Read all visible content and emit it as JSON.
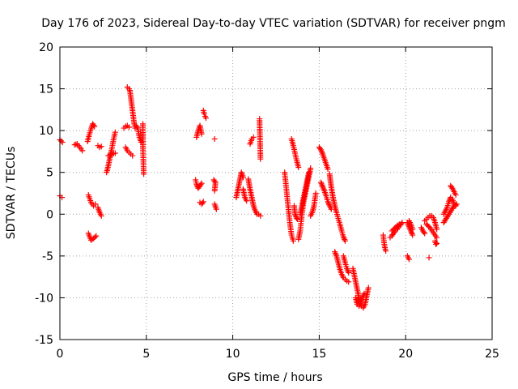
{
  "chart_data": {
    "type": "scatter",
    "title": "Day 176 of 2023, Sidereal Day-to-day VTEC variation (SDTVAR) for receiver pngm",
    "xlabel": "GPS time / hours",
    "ylabel": "SDTVAR / TECUs",
    "xlim": [
      0,
      25
    ],
    "ylim": [
      -15,
      20
    ],
    "xticks": [
      0,
      5,
      10,
      15,
      20,
      25
    ],
    "yticks": [
      -15,
      -10,
      -5,
      0,
      5,
      10,
      15,
      20
    ],
    "grid": true,
    "marker": "+",
    "series": [
      {
        "name": "SDTVAR",
        "color": "#ff0000",
        "segments": [
          {
            "x": [
              0.0,
              0.15
            ],
            "y": [
              8.9,
              8.6
            ]
          },
          {
            "x": [
              0.0,
              0.12
            ],
            "y": [
              2.2,
              2.0
            ]
          },
          {
            "x": [
              0.85,
              1.0,
              1.15,
              1.3
            ],
            "y": [
              8.3,
              8.4,
              8.0,
              7.6
            ]
          },
          {
            "x": [
              1.6,
              1.7,
              1.8,
              1.9,
              2.0
            ],
            "y": [
              8.7,
              9.5,
              10.2,
              10.8,
              10.5
            ]
          },
          {
            "x": [
              1.65,
              1.8,
              1.95,
              2.05
            ],
            "y": [
              2.3,
              1.4,
              1.0,
              1.2
            ]
          },
          {
            "x": [
              1.65,
              1.8,
              1.95,
              2.1
            ],
            "y": [
              -2.3,
              -3.1,
              -2.9,
              -2.6
            ]
          },
          {
            "x": [
              2.2,
              2.3,
              2.4
            ],
            "y": [
              8.2,
              8.0,
              8.1
            ]
          },
          {
            "x": [
              2.2,
              2.3,
              2.4
            ],
            "y": [
              0.8,
              0.2,
              -0.2
            ]
          },
          {
            "x": [
              2.7,
              2.8,
              2.9,
              3.0,
              3.1,
              3.2
            ],
            "y": [
              5.0,
              5.8,
              6.8,
              7.8,
              8.9,
              9.8
            ]
          },
          {
            "x": [
              2.8,
              3.0,
              3.2
            ],
            "y": [
              7.0,
              7.2,
              7.3
            ]
          },
          {
            "x": [
              3.7,
              3.8,
              3.9,
              4.0
            ],
            "y": [
              10.3,
              10.5,
              10.6,
              10.4
            ]
          },
          {
            "x": [
              3.9,
              4.0,
              4.05,
              4.1,
              4.15,
              4.2,
              4.25,
              4.3,
              4.35
            ],
            "y": [
              15.2,
              15.0,
              14.8,
              14.0,
              13.2,
              12.4,
              11.6,
              10.8,
              10.3
            ]
          },
          {
            "x": [
              3.8,
              3.9,
              4.0,
              4.1,
              4.2
            ],
            "y": [
              8.0,
              7.6,
              7.4,
              7.2,
              7.0
            ]
          },
          {
            "x": [
              4.4,
              4.5,
              4.6,
              4.7
            ],
            "y": [
              10.6,
              10.3,
              9.2,
              8.6
            ]
          },
          {
            "x": [
              4.8,
              4.8,
              4.85
            ],
            "y": [
              10.8,
              8.1,
              4.8
            ]
          },
          {
            "x": [
              7.9,
              8.0,
              8.1,
              8.2
            ],
            "y": [
              9.2,
              10.0,
              10.6,
              9.6
            ]
          },
          {
            "x": [
              7.85,
              7.9,
              8.0,
              8.1,
              8.2
            ],
            "y": [
              4.1,
              3.6,
              3.1,
              3.4,
              3.7
            ]
          },
          {
            "x": [
              8.1,
              8.2,
              8.3
            ],
            "y": [
              1.4,
              1.2,
              1.5
            ]
          },
          {
            "x": [
              8.3,
              8.35,
              8.4,
              8.45
            ],
            "y": [
              12.4,
              12.0,
              11.7,
              11.5
            ]
          },
          {
            "x": [
              8.9,
              9.0,
              8.95
            ],
            "y": [
              4.1,
              3.8,
              2.8
            ]
          },
          {
            "x": [
              8.95,
              9.05
            ],
            "y": [
              1.2,
              0.6
            ]
          },
          {
            "x": [
              8.95
            ],
            "y": [
              9.0
            ]
          },
          {
            "x": [
              10.2,
              10.3,
              10.4,
              10.5,
              10.6
            ],
            "y": [
              2.0,
              3.0,
              4.0,
              5.0,
              4.4
            ]
          },
          {
            "x": [
              10.6,
              10.7,
              10.8
            ],
            "y": [
              3.0,
              2.0,
              1.6
            ]
          },
          {
            "x": [
              10.9,
              11.0,
              11.1,
              11.2,
              11.3,
              11.4
            ],
            "y": [
              4.2,
              3.0,
              2.0,
              1.0,
              0.4,
              0.0
            ]
          },
          {
            "x": [
              11.0,
              11.1,
              11.2
            ],
            "y": [
              8.4,
              9.0,
              9.2
            ]
          },
          {
            "x": [
              11.5,
              11.6
            ],
            "y": [
              0.0,
              -0.2
            ]
          },
          {
            "x": [
              11.55,
              11.6
            ],
            "y": [
              11.4,
              6.6
            ]
          },
          {
            "x": [
              13.0,
              13.1,
              13.2,
              13.3,
              13.4,
              13.5
            ],
            "y": [
              5.0,
              3.0,
              1.0,
              -1.0,
              -2.5,
              -3.2
            ]
          },
          {
            "x": [
              13.4,
              13.5,
              13.6,
              13.7,
              13.8
            ],
            "y": [
              9.0,
              8.2,
              7.3,
              6.4,
              5.6
            ]
          },
          {
            "x": [
              13.55,
              13.6,
              13.7,
              13.75
            ],
            "y": [
              1.0,
              0.0,
              -0.5,
              -0.6
            ]
          },
          {
            "x": [
              13.8,
              13.9,
              14.0,
              14.1,
              14.2,
              14.3,
              14.4,
              14.5
            ],
            "y": [
              -3.0,
              -2.0,
              0.0,
              1.5,
              2.5,
              3.5,
              4.5,
              5.5
            ]
          },
          {
            "x": [
              13.9,
              14.0,
              14.1,
              14.2,
              14.3,
              14.4
            ],
            "y": [
              0.0,
              1.0,
              2.0,
              3.0,
              4.0,
              5.0
            ]
          },
          {
            "x": [
              14.5,
              14.6,
              14.7,
              14.8
            ],
            "y": [
              -0.2,
              0.2,
              1.0,
              2.5
            ]
          },
          {
            "x": [
              15.0,
              15.1,
              15.2,
              15.3,
              15.4,
              15.5
            ],
            "y": [
              8.0,
              7.7,
              7.2,
              6.6,
              6.0,
              5.4
            ]
          },
          {
            "x": [
              15.1,
              15.2,
              15.3,
              15.4,
              15.5,
              15.6,
              15.7
            ],
            "y": [
              3.8,
              3.3,
              2.8,
              2.2,
              1.5,
              1.0,
              0.6
            ]
          },
          {
            "x": [
              15.6,
              15.7,
              15.8,
              15.9,
              16.0,
              16.1,
              16.2,
              16.3,
              16.4,
              16.5
            ],
            "y": [
              4.8,
              3.2,
              2.0,
              1.0,
              0.2,
              -0.5,
              -1.2,
              -2.0,
              -2.7,
              -3.2
            ]
          },
          {
            "x": [
              15.9,
              16.0,
              16.1,
              16.2,
              16.3,
              16.4,
              16.5,
              16.6,
              16.7
            ],
            "y": [
              -4.5,
              -5.0,
              -5.8,
              -6.6,
              -7.2,
              -7.6,
              -7.8,
              -8.0,
              -8.1
            ]
          },
          {
            "x": [
              16.4,
              16.5,
              16.6,
              16.7
            ],
            "y": [
              -5.0,
              -5.8,
              -6.5,
              -7.0
            ]
          },
          {
            "x": [
              16.95,
              17.05,
              17.15,
              17.25,
              17.35,
              17.45,
              17.55,
              17.65,
              17.75,
              17.85
            ],
            "y": [
              -6.5,
              -7.5,
              -8.5,
              -9.5,
              -10.5,
              -11.0,
              -11.2,
              -10.8,
              -9.8,
              -8.8
            ]
          },
          {
            "x": [
              17.1,
              17.2,
              17.3,
              17.4,
              17.5,
              17.6
            ],
            "y": [
              -10.0,
              -10.8,
              -11.0,
              -10.5,
              -10.0,
              -9.5
            ]
          },
          {
            "x": [
              18.7,
              18.75,
              18.8,
              18.85
            ],
            "y": [
              -2.5,
              -3.4,
              -4.0,
              -4.4
            ]
          },
          {
            "x": [
              19.1,
              19.2,
              19.3,
              19.4,
              19.5,
              19.6,
              19.7,
              19.8
            ],
            "y": [
              -2.8,
              -2.6,
              -2.3,
              -2.0,
              -1.8,
              -1.5,
              -1.3,
              -1.0
            ]
          },
          {
            "x": [
              19.2,
              19.35,
              19.5,
              19.65
            ],
            "y": [
              -2.0,
              -1.7,
              -1.4,
              -1.2
            ]
          },
          {
            "x": [
              20.1,
              20.2,
              20.3,
              20.4
            ],
            "y": [
              -1.0,
              -1.5,
              -2.0,
              -2.5
            ]
          },
          {
            "x": [
              20.2,
              20.3,
              20.4
            ],
            "y": [
              -0.8,
              -1.2,
              -1.8
            ]
          },
          {
            "x": [
              20.1,
              20.2
            ],
            "y": [
              -5.0,
              -5.4
            ]
          },
          {
            "x": [
              20.9,
              21.0,
              21.1
            ],
            "y": [
              -1.6,
              -2.0,
              -2.3
            ]
          },
          {
            "x": [
              21.1,
              21.2,
              21.3,
              21.4,
              21.5,
              21.6,
              21.7,
              21.8
            ],
            "y": [
              -0.8,
              -0.6,
              -0.4,
              -0.2,
              -0.2,
              -0.4,
              -1.0,
              -1.8
            ]
          },
          {
            "x": [
              21.2,
              21.4,
              21.6,
              21.8
            ],
            "y": [
              -1.2,
              -1.6,
              -2.2,
              -2.8
            ]
          },
          {
            "x": [
              21.35
            ],
            "y": [
              -5.2
            ]
          },
          {
            "x": [
              21.7,
              21.75,
              21.8
            ],
            "y": [
              -3.2,
              -3.6,
              -3.5
            ]
          },
          {
            "x": [
              22.2,
              22.35,
              22.5,
              22.65,
              22.8,
              22.95
            ],
            "y": [
              -1.0,
              -0.5,
              0.0,
              0.5,
              1.0,
              1.2
            ]
          },
          {
            "x": [
              22.2,
              22.3,
              22.4,
              22.5,
              22.6,
              22.7,
              22.8,
              22.9
            ],
            "y": [
              0.0,
              0.4,
              0.8,
              1.5,
              2.0,
              1.8,
              1.2,
              1.0
            ]
          },
          {
            "x": [
              22.6,
              22.7,
              22.8,
              22.9
            ],
            "y": [
              3.4,
              3.1,
              2.7,
              2.3
            ]
          }
        ]
      }
    ]
  }
}
